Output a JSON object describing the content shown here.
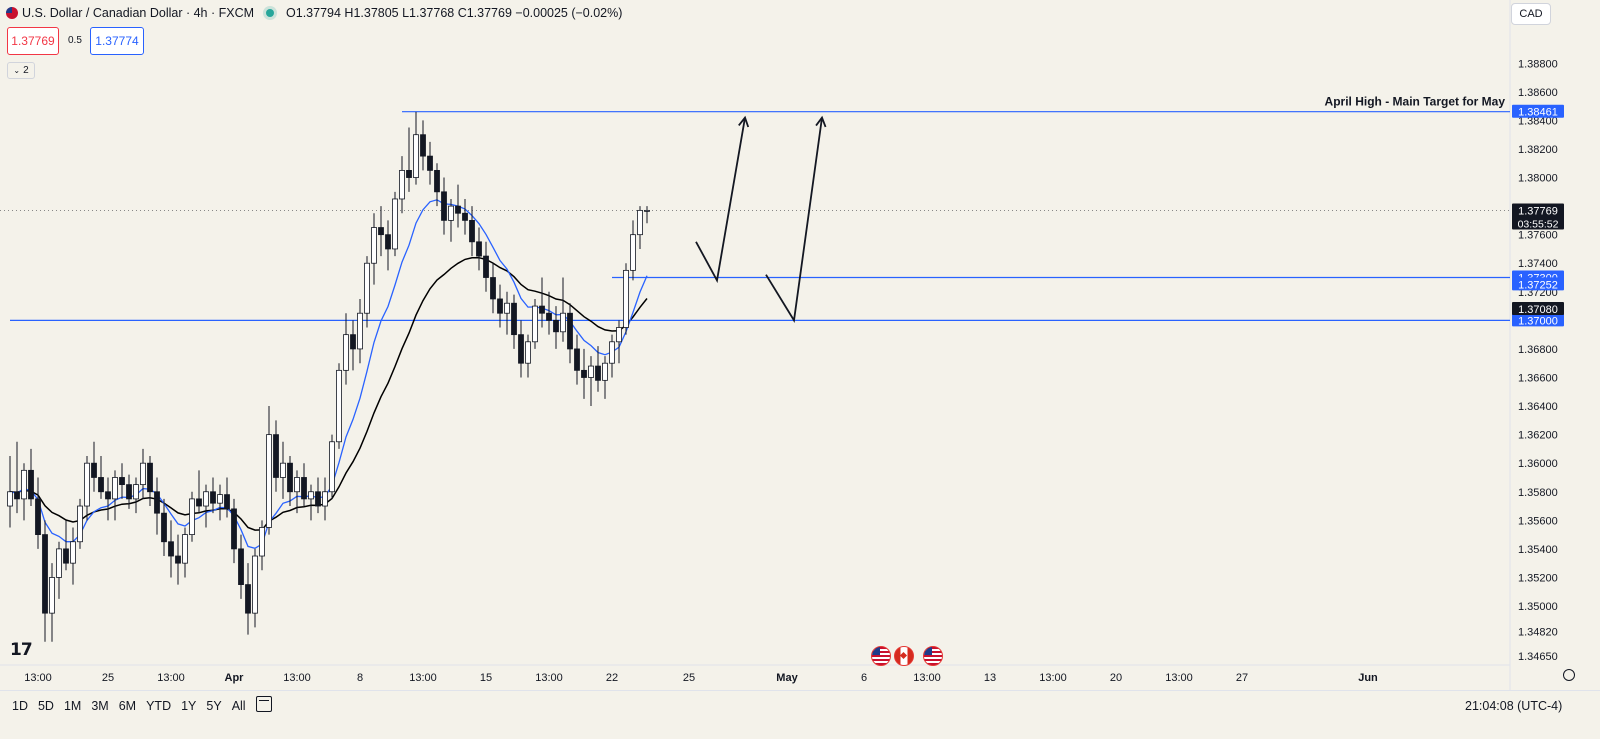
{
  "header": {
    "title": "U.S. Dollar / Canadian Dollar · 4h · FXCM",
    "ohlc": "O1.37794 H1.37805 L1.37768 C1.37769 −0.00025 (−0.02%)",
    "sell_price": "1.37769",
    "spread": "0.5",
    "buy_price": "1.37774",
    "indicators_count": "2",
    "currency": "CAD"
  },
  "colors": {
    "background": "#f4f2ea",
    "up_candle": "#ffffff",
    "down_candle": "#131722",
    "ema_fast": "#2962ff",
    "ema_slow": "#000000",
    "level_lines": "#2962ff"
  },
  "chart_data": {
    "type": "candlestick",
    "symbol": "USDCAD",
    "timeframe": "4h",
    "y_ticks": [
      "1.38800",
      "1.38600",
      "1.38400",
      "1.38200",
      "1.38000",
      "1.37600",
      "1.37400",
      "1.37200",
      "1.37000",
      "1.36800",
      "1.36600",
      "1.36400",
      "1.36200",
      "1.36000",
      "1.35800",
      "1.35600",
      "1.35400",
      "1.35200",
      "1.35000",
      "1.34820",
      "1.34650"
    ],
    "ylim": [
      1.3465,
      1.389
    ],
    "x_ticks": [
      {
        "label": "13:00",
        "bar": 4
      },
      {
        "label": "25",
        "bar": 14
      },
      {
        "label": "13:00",
        "bar": 23
      },
      {
        "label": "Apr",
        "bar": 32
      },
      {
        "label": "13:00",
        "bar": 41
      },
      {
        "label": "8",
        "bar": 50
      },
      {
        "label": "13:00",
        "bar": 59
      },
      {
        "label": "15",
        "bar": 68
      },
      {
        "label": "13:00",
        "bar": 77
      },
      {
        "label": "22",
        "bar": 86
      },
      {
        "label": "25",
        "bar": 97
      },
      {
        "label": "May",
        "bar": 111
      },
      {
        "label": "6",
        "bar": 122
      },
      {
        "label": "13:00",
        "bar": 131
      },
      {
        "label": "13",
        "bar": 140
      },
      {
        "label": "13:00",
        "bar": 149
      },
      {
        "label": "20",
        "bar": 158
      },
      {
        "label": "13:00",
        "bar": 167
      },
      {
        "label": "27",
        "bar": 176
      },
      {
        "label": "Jun",
        "bar": 194
      }
    ],
    "candles": [
      [
        1.357,
        1.3605,
        1.3555,
        1.358
      ],
      [
        1.358,
        1.3615,
        1.3565,
        1.3575
      ],
      [
        1.3575,
        1.36,
        1.356,
        1.3595
      ],
      [
        1.3595,
        1.361,
        1.357,
        1.3575
      ],
      [
        1.3575,
        1.359,
        1.354,
        1.355
      ],
      [
        1.355,
        1.356,
        1.3475,
        1.3495
      ],
      [
        1.3495,
        1.353,
        1.3475,
        1.352
      ],
      [
        1.352,
        1.3545,
        1.3505,
        1.354
      ],
      [
        1.354,
        1.356,
        1.3525,
        1.353
      ],
      [
        1.353,
        1.3555,
        1.3515,
        1.3545
      ],
      [
        1.3545,
        1.3575,
        1.354,
        1.357
      ],
      [
        1.357,
        1.3605,
        1.356,
        1.36
      ],
      [
        1.36,
        1.3615,
        1.358,
        1.359
      ],
      [
        1.359,
        1.3605,
        1.3575,
        1.358
      ],
      [
        1.358,
        1.359,
        1.356,
        1.3575
      ],
      [
        1.3575,
        1.3595,
        1.356,
        1.359
      ],
      [
        1.359,
        1.36,
        1.3575,
        1.3585
      ],
      [
        1.3585,
        1.3592,
        1.3568,
        1.3575
      ],
      [
        1.3575,
        1.359,
        1.3565,
        1.3585
      ],
      [
        1.3585,
        1.361,
        1.3575,
        1.36
      ],
      [
        1.36,
        1.3605,
        1.357,
        1.358
      ],
      [
        1.358,
        1.359,
        1.355,
        1.3565
      ],
      [
        1.3565,
        1.3575,
        1.3535,
        1.3545
      ],
      [
        1.3545,
        1.356,
        1.352,
        1.3535
      ],
      [
        1.3535,
        1.355,
        1.3515,
        1.353
      ],
      [
        1.353,
        1.3555,
        1.352,
        1.355
      ],
      [
        1.355,
        1.358,
        1.3545,
        1.3575
      ],
      [
        1.3575,
        1.3595,
        1.3565,
        1.357
      ],
      [
        1.357,
        1.3585,
        1.3555,
        1.358
      ],
      [
        1.358,
        1.359,
        1.3565,
        1.3572
      ],
      [
        1.3572,
        1.3585,
        1.356,
        1.3578
      ],
      [
        1.3578,
        1.359,
        1.3562,
        1.3568
      ],
      [
        1.3568,
        1.3575,
        1.353,
        1.354
      ],
      [
        1.354,
        1.355,
        1.3505,
        1.3515
      ],
      [
        1.3515,
        1.353,
        1.348,
        1.3495
      ],
      [
        1.3495,
        1.354,
        1.3485,
        1.3535
      ],
      [
        1.3535,
        1.356,
        1.3525,
        1.3555
      ],
      [
        1.3555,
        1.364,
        1.355,
        1.362
      ],
      [
        1.362,
        1.363,
        1.358,
        1.359
      ],
      [
        1.359,
        1.3615,
        1.3575,
        1.36
      ],
      [
        1.36,
        1.3605,
        1.357,
        1.358
      ],
      [
        1.358,
        1.3595,
        1.3565,
        1.359
      ],
      [
        1.359,
        1.36,
        1.357,
        1.3575
      ],
      [
        1.3575,
        1.3585,
        1.356,
        1.358
      ],
      [
        1.358,
        1.359,
        1.3565,
        1.357
      ],
      [
        1.357,
        1.359,
        1.356,
        1.358
      ],
      [
        1.358,
        1.362,
        1.3575,
        1.3615
      ],
      [
        1.3615,
        1.367,
        1.361,
        1.3665
      ],
      [
        1.3665,
        1.3705,
        1.3655,
        1.369
      ],
      [
        1.369,
        1.37,
        1.3665,
        1.368
      ],
      [
        1.368,
        1.3715,
        1.367,
        1.3705
      ],
      [
        1.3705,
        1.3745,
        1.3695,
        1.374
      ],
      [
        1.374,
        1.3775,
        1.3725,
        1.3765
      ],
      [
        1.3765,
        1.378,
        1.3745,
        1.376
      ],
      [
        1.376,
        1.377,
        1.3735,
        1.375
      ],
      [
        1.375,
        1.379,
        1.3745,
        1.3785
      ],
      [
        1.3785,
        1.3815,
        1.3775,
        1.3805
      ],
      [
        1.3805,
        1.3835,
        1.379,
        1.38
      ],
      [
        1.38,
        1.3846,
        1.3795,
        1.383
      ],
      [
        1.383,
        1.384,
        1.3805,
        1.3815
      ],
      [
        1.3815,
        1.3825,
        1.3795,
        1.3805
      ],
      [
        1.3805,
        1.381,
        1.378,
        1.379
      ],
      [
        1.379,
        1.38,
        1.376,
        1.377
      ],
      [
        1.377,
        1.3785,
        1.3755,
        1.378
      ],
      [
        1.378,
        1.3795,
        1.3765,
        1.3775
      ],
      [
        1.3775,
        1.3785,
        1.376,
        1.377
      ],
      [
        1.377,
        1.378,
        1.3745,
        1.3755
      ],
      [
        1.3755,
        1.3765,
        1.3735,
        1.3745
      ],
      [
        1.3745,
        1.3755,
        1.372,
        1.373
      ],
      [
        1.373,
        1.374,
        1.3705,
        1.3715
      ],
      [
        1.3715,
        1.3725,
        1.3695,
        1.3705
      ],
      [
        1.3705,
        1.372,
        1.369,
        1.3712
      ],
      [
        1.3712,
        1.3718,
        1.368,
        1.369
      ],
      [
        1.369,
        1.37,
        1.366,
        1.367
      ],
      [
        1.367,
        1.369,
        1.366,
        1.3685
      ],
      [
        1.3685,
        1.3715,
        1.368,
        1.371
      ],
      [
        1.371,
        1.373,
        1.3695,
        1.3705
      ],
      [
        1.3705,
        1.372,
        1.369,
        1.37
      ],
      [
        1.37,
        1.371,
        1.368,
        1.3692
      ],
      [
        1.3692,
        1.373,
        1.3685,
        1.3705
      ],
      [
        1.3705,
        1.3712,
        1.367,
        1.368
      ],
      [
        1.368,
        1.369,
        1.3655,
        1.3665
      ],
      [
        1.3665,
        1.368,
        1.3645,
        1.366
      ],
      [
        1.366,
        1.3675,
        1.364,
        1.3668
      ],
      [
        1.3668,
        1.3682,
        1.365,
        1.3658
      ],
      [
        1.3658,
        1.3675,
        1.3645,
        1.367
      ],
      [
        1.367,
        1.369,
        1.366,
        1.3685
      ],
      [
        1.3685,
        1.37,
        1.367,
        1.3695
      ],
      [
        1.3695,
        1.374,
        1.369,
        1.3735
      ],
      [
        1.3735,
        1.377,
        1.3728,
        1.376
      ],
      [
        1.376,
        1.378,
        1.375,
        1.3777
      ],
      [
        1.3777,
        1.378,
        1.3768,
        1.3777
      ]
    ],
    "ema_fast_name": "",
    "ema_slow_name": "",
    "levels": [
      {
        "price": 1.38461,
        "label": "1.38461",
        "start_bar": 56
      },
      {
        "price": 1.373,
        "label": "1.37300",
        "start_bar": 86
      },
      {
        "price": 1.37,
        "label": "1.37000",
        "start_bar": 0
      }
    ],
    "price_tags": [
      {
        "price": 1.37252,
        "label": "1.37252",
        "style": "blue"
      },
      {
        "price": 1.3708,
        "label": "1.37080",
        "style": "black"
      }
    ],
    "current_price": "1.37769",
    "countdown": "03:55:52",
    "annotation": "April High - Main Target for May",
    "projection_paths": [
      [
        [
          98,
          1.3755
        ],
        [
          101,
          1.3728
        ],
        [
          105,
          1.3842
        ]
      ],
      [
        [
          108,
          1.3732
        ],
        [
          112,
          1.37
        ],
        [
          116,
          1.3842
        ]
      ]
    ],
    "grid": false,
    "legend": "none"
  },
  "bottom": {
    "ranges": [
      "1D",
      "5D",
      "1M",
      "3M",
      "6M",
      "YTD",
      "1Y",
      "5Y",
      "All"
    ],
    "clock": "21:04:08 (UTC-4)"
  }
}
